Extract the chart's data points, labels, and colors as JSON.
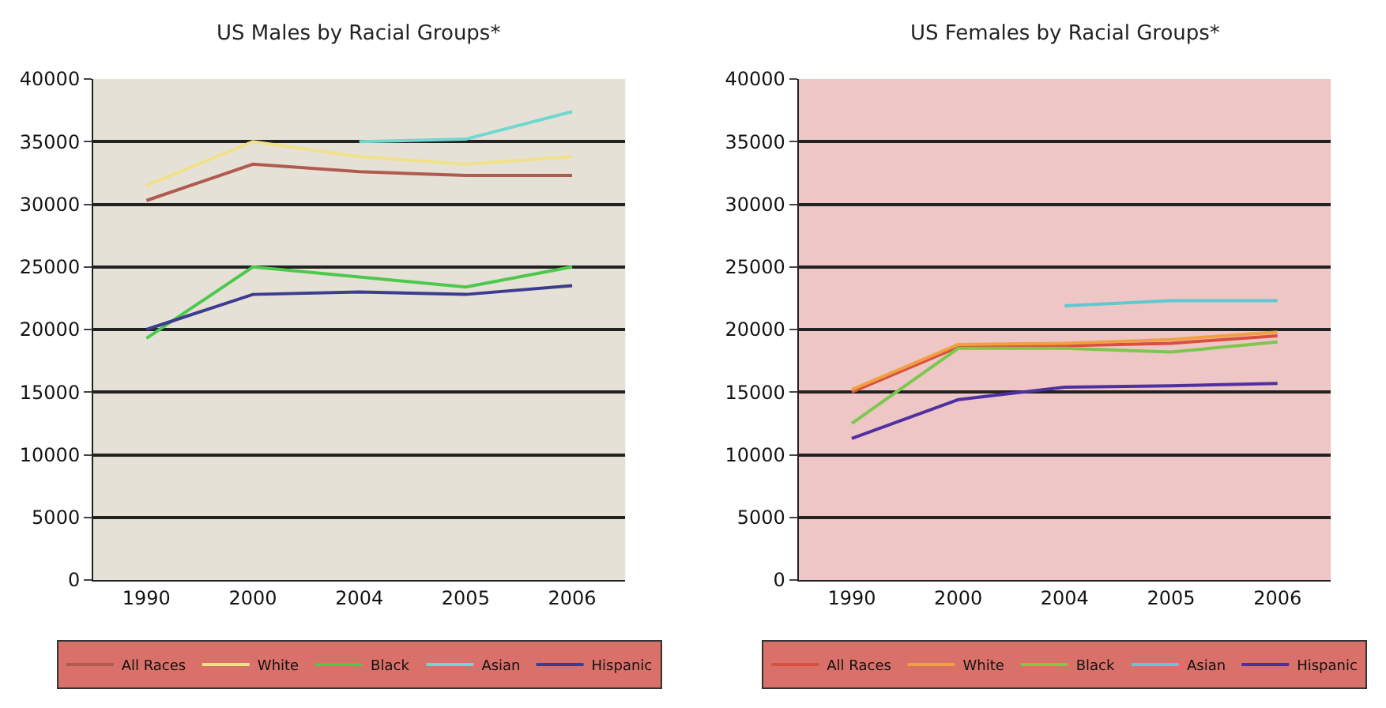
{
  "chart_data": [
    {
      "type": "line",
      "title": "US Males by Racial Groups*",
      "categories": [
        "1990",
        "2000",
        "2004",
        "2005",
        "2006"
      ],
      "ylim": [
        0,
        40000
      ],
      "yticks": [
        0,
        5000,
        10000,
        15000,
        20000,
        25000,
        30000,
        35000,
        40000
      ],
      "grid": "y",
      "legend": "bottom",
      "marker": "none",
      "line_style": "solid",
      "series": [
        {
          "name": "All Races",
          "color": "#b05a50",
          "values": [
            30300,
            33200,
            32600,
            32300,
            32300
          ]
        },
        {
          "name": "White",
          "color": "#f0e08a",
          "values": [
            31500,
            35000,
            33800,
            33200,
            33800
          ]
        },
        {
          "name": "Black",
          "color": "#4cc94c",
          "values": [
            19300,
            25000,
            24200,
            23400,
            25000
          ]
        },
        {
          "name": "Asian",
          "color": "#70d8d0",
          "values": [
            null,
            null,
            35000,
            35200,
            37400
          ]
        },
        {
          "name": "Hispanic",
          "color": "#3c3c90",
          "values": [
            20000,
            22800,
            23000,
            22800,
            23500
          ]
        }
      ]
    },
    {
      "type": "line",
      "title": "US Females by Racial Groups*",
      "categories": [
        "1990",
        "2000",
        "2004",
        "2005",
        "2006"
      ],
      "ylim": [
        0,
        40000
      ],
      "yticks": [
        0,
        5000,
        10000,
        15000,
        20000,
        25000,
        30000,
        35000,
        40000
      ],
      "grid": "y",
      "legend": "bottom",
      "marker": "none",
      "line_style": "solid",
      "series": [
        {
          "name": "All Races",
          "color": "#d85040",
          "values": [
            15000,
            18600,
            18700,
            18900,
            19500
          ]
        },
        {
          "name": "White",
          "color": "#f0a040",
          "values": [
            15200,
            18800,
            18900,
            19200,
            19800
          ]
        },
        {
          "name": "Black",
          "color": "#7cc84c",
          "values": [
            12500,
            18500,
            18500,
            18200,
            19000
          ]
        },
        {
          "name": "Asian",
          "color": "#60c8d0",
          "values": [
            null,
            null,
            21900,
            22300,
            22300
          ]
        },
        {
          "name": "Hispanic",
          "color": "#5030a0",
          "values": [
            11300,
            14400,
            15400,
            15500,
            15700
          ]
        }
      ]
    }
  ]
}
